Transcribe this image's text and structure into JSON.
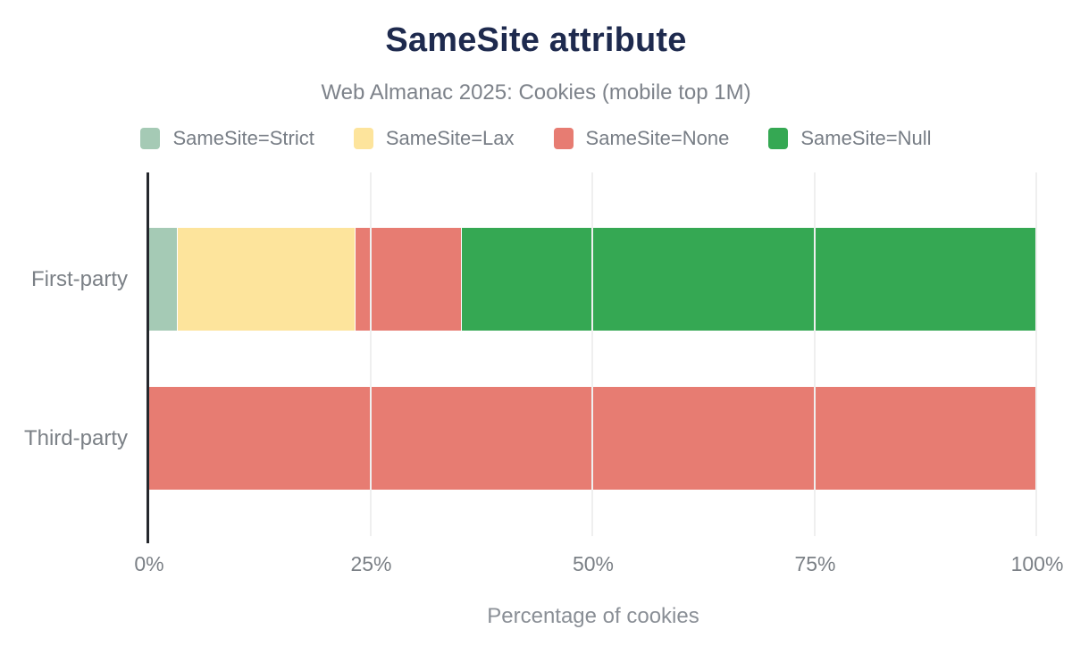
{
  "header": {
    "title": "SameSite attribute",
    "subtitle": "Web Almanac 2025: Cookies (mobile top 1M)"
  },
  "chart_data": {
    "type": "bar",
    "orientation": "horizontal",
    "stacked": true,
    "title": "SameSite attribute",
    "subtitle": "Web Almanac 2025: Cookies (mobile top 1M)",
    "categories": [
      "First-party",
      "Third-party"
    ],
    "series": [
      {
        "name": "SameSite=Strict",
        "color": "#a5cab5",
        "values": [
          3.2,
          0
        ]
      },
      {
        "name": "SameSite=Lax",
        "color": "#fde49c",
        "values": [
          20.0,
          0
        ]
      },
      {
        "name": "SameSite=None",
        "color": "#e77c72",
        "values": [
          12.0,
          100
        ]
      },
      {
        "name": "SameSite=Null",
        "color": "#35a853",
        "values": [
          64.8,
          0
        ]
      }
    ],
    "xlabel": "Percentage of cookies",
    "ylabel": "",
    "xlim": [
      0,
      100
    ],
    "x_ticks": [
      {
        "value": 0,
        "label": "0%"
      },
      {
        "value": 25,
        "label": "25%"
      },
      {
        "value": 50,
        "label": "50%"
      },
      {
        "value": 75,
        "label": "75%"
      },
      {
        "value": 100,
        "label": "100%"
      }
    ],
    "grid": "vertical",
    "legend_position": "top"
  },
  "colors": {
    "title_text": "#1e2a4e",
    "muted_text": "#7b8086",
    "axis_line": "#25282d",
    "gridline": "#efefef",
    "background": "#ffffff"
  }
}
